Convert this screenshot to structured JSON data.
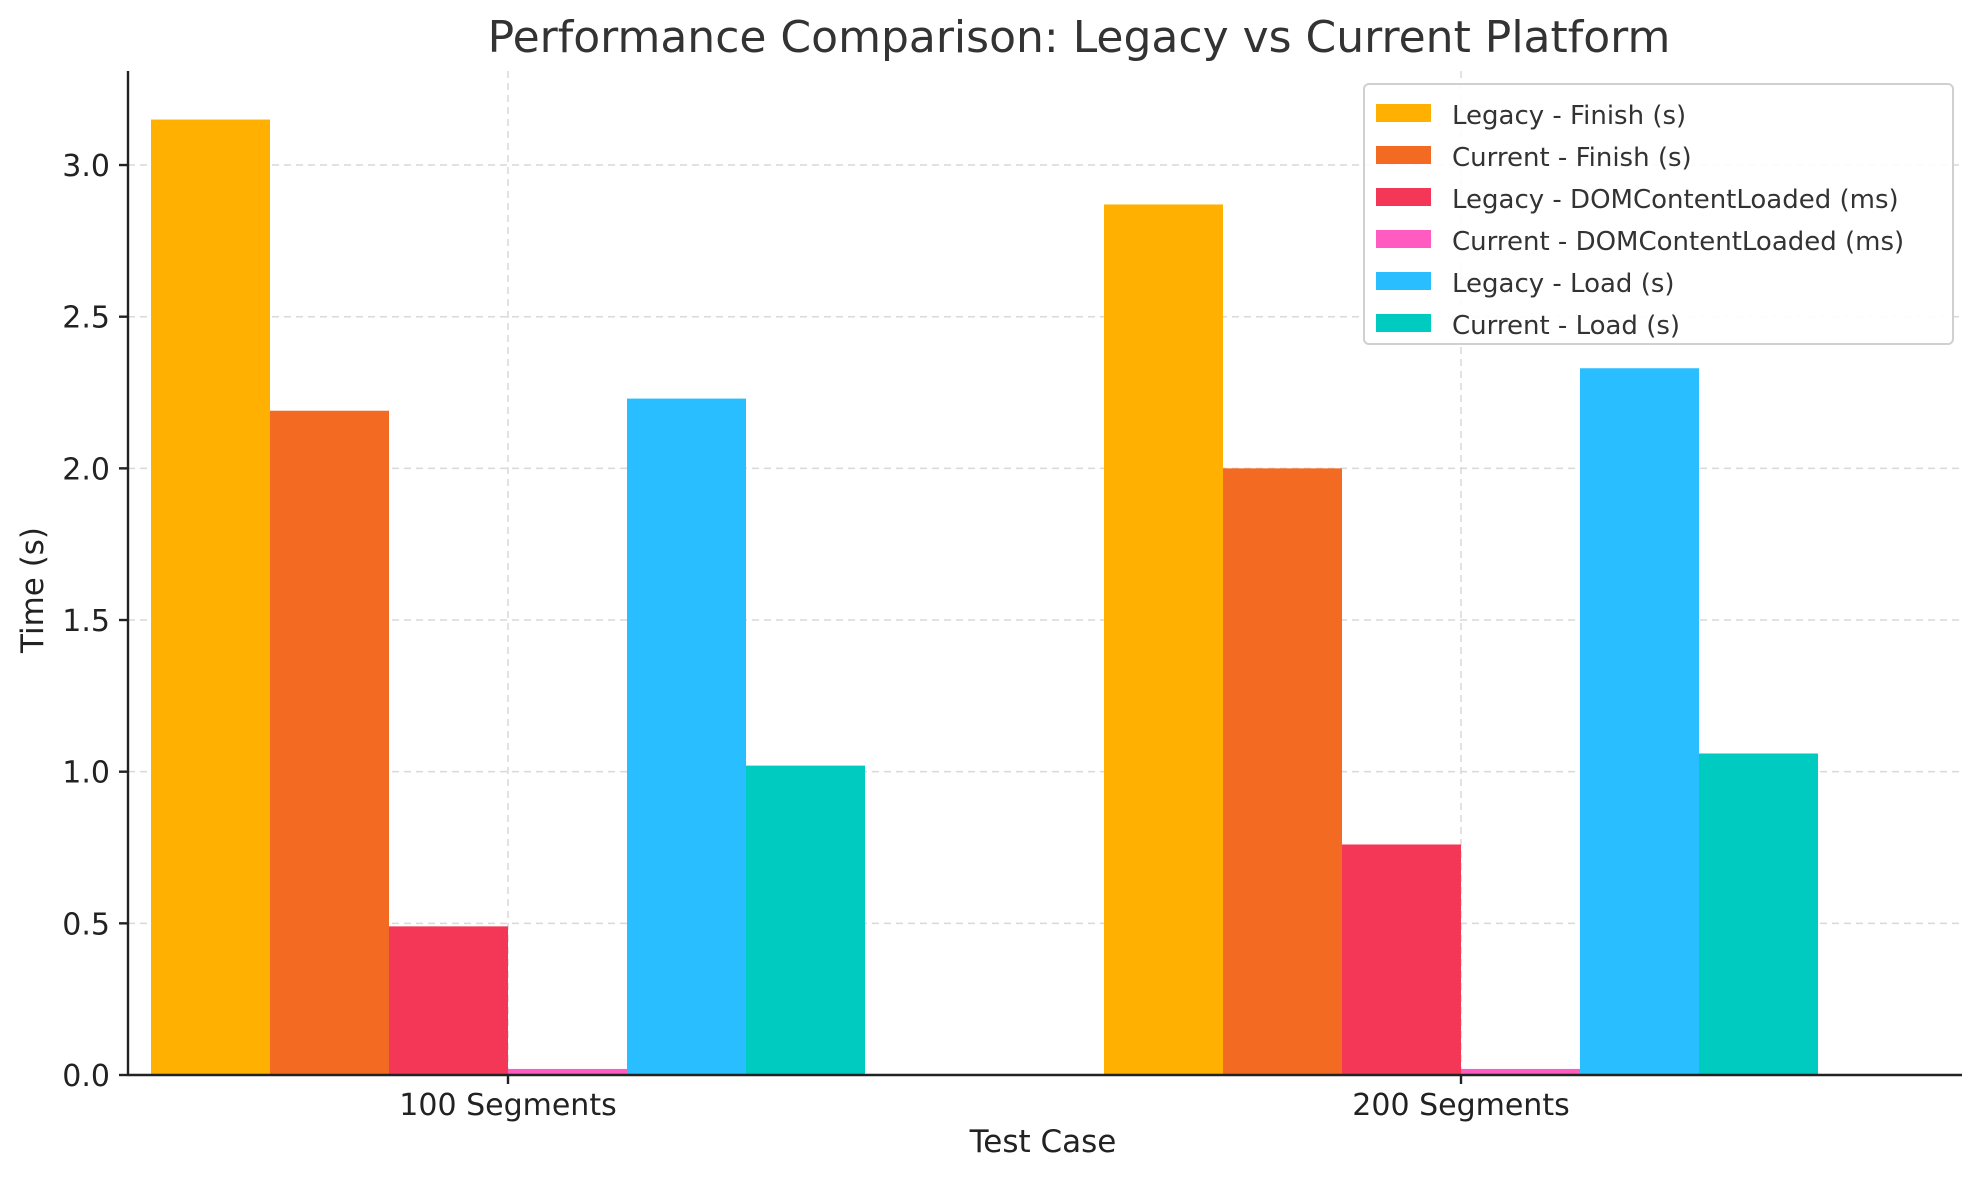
{
  "chart_data": {
    "type": "bar",
    "title": "Performance Comparison: Legacy vs Current Platform",
    "xlabel": "Test Case",
    "ylabel": "Time (s)",
    "categories": [
      "100 Segments",
      "200 Segments"
    ],
    "series": [
      {
        "name": "Legacy - Finish (s)",
        "values": [
          3.15,
          2.87
        ],
        "color": "#FFB000"
      },
      {
        "name": "Current - Finish (s)",
        "values": [
          2.19,
          2.0
        ],
        "color": "#F36B22"
      },
      {
        "name": "Legacy - DOMContentLoaded (ms)",
        "values": [
          0.49,
          0.76
        ],
        "color": "#F43657"
      },
      {
        "name": "Current - DOMContentLoaded (ms)",
        "values": [
          0.02,
          0.02
        ],
        "color": "#FF5BC1"
      },
      {
        "name": "Legacy - Load (s)",
        "values": [
          2.23,
          2.33
        ],
        "color": "#28BEFF"
      },
      {
        "name": "Current - Load (s)",
        "values": [
          1.02,
          1.06
        ],
        "color": "#00CBC0"
      }
    ],
    "ylim": [
      0,
      3.31
    ],
    "yticks": [
      "0.0",
      "0.5",
      "1.0",
      "1.5",
      "2.0",
      "2.5",
      "3.0"
    ],
    "grid": true,
    "legend_position": "top-right"
  }
}
